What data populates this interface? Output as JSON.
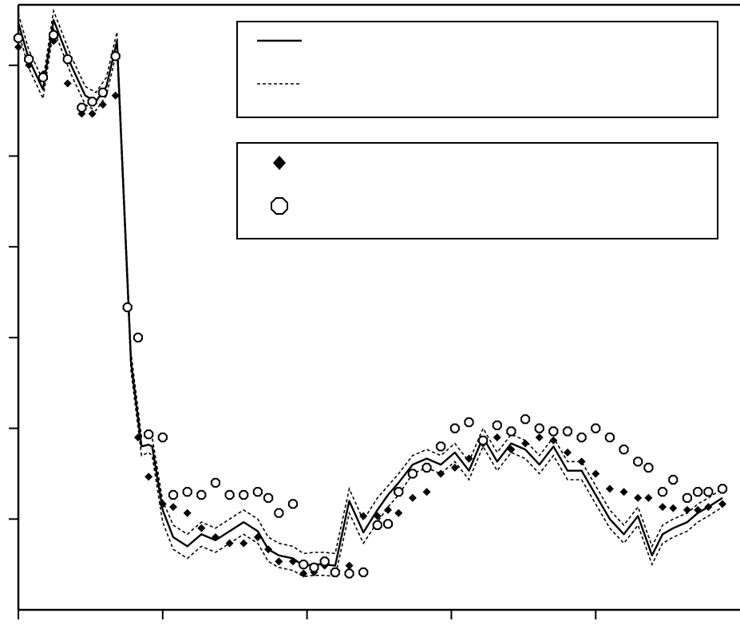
{
  "chart_data": {
    "type": "line",
    "title": "",
    "xlabel": "",
    "ylabel": "",
    "xlim": [
      0,
      100
    ],
    "ylim": [
      0,
      10
    ],
    "grid": false,
    "legend": [
      {
        "position": "top-right",
        "entries": [
          {
            "marker": "solid-line",
            "label": ""
          },
          {
            "marker": "dotted-line",
            "label": ""
          }
        ]
      },
      {
        "position": "top-right",
        "entries": [
          {
            "marker": "filled-diamond",
            "label": ""
          },
          {
            "marker": "open-octagon",
            "label": ""
          }
        ]
      }
    ],
    "series": [
      {
        "style": "solid-line",
        "x": [
          0,
          1.5,
          3.5,
          5,
          7.5,
          9.5,
          11,
          12.5,
          14,
          16,
          17.5,
          18.5,
          19,
          20.5,
          22,
          24,
          26,
          28,
          30,
          32,
          34,
          35.5,
          37,
          39,
          40.5,
          42,
          43.5,
          45,
          47,
          49,
          51,
          52.5,
          54,
          56,
          58,
          60,
          62,
          64,
          66,
          68,
          70,
          72,
          74,
          76,
          78,
          80,
          82,
          84,
          86,
          88,
          90,
          91.5,
          93,
          95,
          96.5,
          98,
          100
        ],
        "y": [
          9.7,
          9.1,
          8.6,
          9.75,
          9.0,
          8.5,
          8.4,
          8.65,
          9.4,
          4.1,
          2.7,
          2.73,
          2.7,
          1.65,
          1.2,
          1.05,
          1.25,
          1.15,
          1.3,
          1.45,
          1.3,
          1.0,
          0.9,
          0.85,
          0.73,
          0.75,
          0.75,
          0.73,
          1.8,
          1.28,
          1.65,
          1.9,
          2.1,
          2.4,
          2.5,
          2.4,
          2.6,
          2.3,
          2.85,
          2.45,
          2.75,
          2.65,
          2.4,
          2.7,
          2.3,
          2.3,
          1.9,
          1.5,
          1.25,
          1.55,
          0.9,
          1.25,
          1.35,
          1.45,
          1.6,
          1.7,
          1.85
        ]
      },
      {
        "style": "dotted-line-upper",
        "x": [
          0,
          1.5,
          3.5,
          5,
          7.5,
          9.5,
          11,
          12.5,
          14,
          16,
          17.5,
          18.5,
          19,
          20.5,
          22,
          24,
          26,
          28,
          30,
          32,
          34,
          35.5,
          37,
          39,
          40.5,
          42,
          43.5,
          45,
          47,
          49,
          51,
          52.5,
          54,
          56,
          58,
          60,
          62,
          64,
          66,
          68,
          70,
          72,
          74,
          76,
          78,
          80,
          82,
          84,
          86,
          88,
          90,
          91.5,
          93,
          95,
          96.5,
          98,
          100
        ],
        "y": [
          9.85,
          9.25,
          8.75,
          9.9,
          9.15,
          8.65,
          8.55,
          8.8,
          9.55,
          4.25,
          2.85,
          2.9,
          2.85,
          1.8,
          1.4,
          1.25,
          1.45,
          1.35,
          1.5,
          1.65,
          1.5,
          1.2,
          1.1,
          1.05,
          0.93,
          0.95,
          0.95,
          0.93,
          2.0,
          1.48,
          1.85,
          2.05,
          2.25,
          2.55,
          2.65,
          2.55,
          2.75,
          2.45,
          3.0,
          2.6,
          2.9,
          2.8,
          2.55,
          2.85,
          2.45,
          2.45,
          2.05,
          1.65,
          1.4,
          1.7,
          1.05,
          1.4,
          1.5,
          1.6,
          1.75,
          1.85,
          2.0
        ]
      },
      {
        "style": "dotted-line-lower",
        "x": [
          0,
          1.5,
          3.5,
          5,
          7.5,
          9.5,
          11,
          12.5,
          14,
          16,
          17.5,
          18.5,
          19,
          20.5,
          22,
          24,
          26,
          28,
          30,
          32,
          34,
          35.5,
          37,
          39,
          40.5,
          42,
          43.5,
          45,
          47,
          49,
          51,
          52.5,
          54,
          56,
          58,
          60,
          62,
          64,
          66,
          68,
          70,
          72,
          74,
          76,
          78,
          80,
          82,
          84,
          86,
          88,
          90,
          91.5,
          93,
          95,
          96.5,
          98,
          100
        ],
        "y": [
          9.55,
          8.95,
          8.45,
          9.6,
          8.85,
          8.35,
          8.25,
          8.5,
          9.25,
          3.95,
          2.55,
          2.6,
          2.55,
          1.45,
          1.0,
          0.85,
          1.05,
          0.95,
          1.1,
          1.25,
          1.1,
          0.8,
          0.7,
          0.65,
          0.55,
          0.57,
          0.57,
          0.55,
          1.6,
          1.1,
          1.45,
          1.7,
          1.9,
          2.25,
          2.35,
          2.25,
          2.45,
          2.15,
          2.7,
          2.3,
          2.6,
          2.5,
          2.25,
          2.55,
          2.15,
          2.15,
          1.75,
          1.35,
          1.1,
          1.4,
          0.75,
          1.1,
          1.2,
          1.3,
          1.45,
          1.55,
          1.7
        ]
      },
      {
        "style": "filled-diamond",
        "x": [
          0,
          1.5,
          3.5,
          5,
          7,
          9,
          10.5,
          12,
          13.8,
          15.5,
          17,
          18.5,
          20.5,
          22,
          24,
          26,
          28,
          30,
          32,
          34,
          35.5,
          37,
          39,
          40.5,
          42,
          43.5,
          45,
          47,
          49,
          51,
          52.5,
          54,
          56,
          58,
          60,
          62,
          64,
          66,
          68,
          70,
          72,
          74,
          76,
          78,
          80,
          82,
          84,
          86,
          88,
          89.5,
          91.5,
          93,
          95,
          96.5,
          98,
          100
        ],
        "y": [
          9.3,
          9.0,
          8.85,
          9.4,
          8.7,
          8.2,
          8.2,
          8.35,
          8.5,
          5.0,
          2.85,
          2.2,
          1.75,
          1.7,
          1.6,
          1.35,
          1.2,
          1.1,
          1.1,
          1.2,
          1.0,
          0.8,
          0.8,
          0.6,
          0.62,
          0.73,
          0.62,
          0.73,
          1.55,
          1.55,
          1.65,
          1.6,
          1.85,
          1.95,
          2.25,
          2.35,
          2.5,
          2.75,
          2.85,
          2.65,
          2.75,
          2.85,
          2.8,
          2.6,
          2.45,
          2.25,
          2.0,
          1.95,
          1.85,
          1.85,
          1.7,
          1.68,
          1.65,
          1.65,
          1.7,
          1.75
        ]
      },
      {
        "style": "open-octagon",
        "x": [
          0,
          1.5,
          3.5,
          5,
          7,
          9,
          10.5,
          12,
          13.8,
          15.5,
          17,
          18.5,
          20.5,
          22,
          24,
          26,
          28,
          30,
          32,
          34,
          35.5,
          37,
          39,
          40.5,
          42,
          43.5,
          45,
          47,
          49,
          51,
          52.5,
          54,
          56,
          58,
          60,
          62,
          64,
          66,
          68,
          70,
          72,
          74,
          76,
          78,
          80,
          82,
          84,
          86,
          88,
          89.5,
          91.5,
          93,
          95,
          96.5,
          98,
          100
        ],
        "y": [
          9.45,
          9.1,
          8.8,
          9.5,
          9.1,
          8.3,
          8.4,
          8.55,
          9.15,
          5.0,
          4.5,
          2.9,
          2.85,
          1.9,
          1.95,
          1.9,
          2.1,
          1.9,
          1.9,
          1.95,
          1.85,
          1.6,
          1.75,
          0.75,
          0.7,
          0.8,
          0.62,
          0.6,
          0.62,
          1.4,
          1.42,
          1.95,
          2.25,
          2.35,
          2.7,
          3.0,
          3.1,
          2.8,
          3.05,
          2.95,
          3.15,
          3.0,
          2.95,
          2.95,
          2.85,
          3.0,
          2.85,
          2.65,
          2.45,
          2.35,
          1.95,
          2.15,
          1.85,
          1.95,
          1.95,
          2.0
        ]
      }
    ]
  }
}
